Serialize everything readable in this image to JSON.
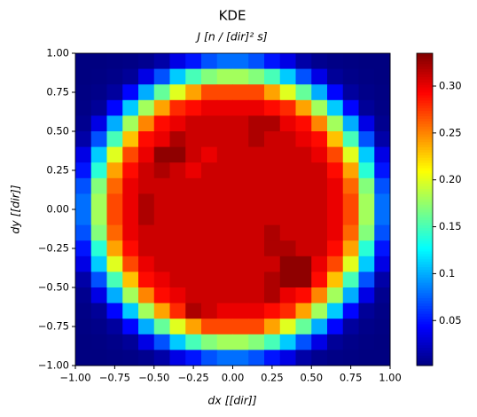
{
  "chart_data": {
    "type": "heatmap",
    "title": "KDE",
    "subtitle": "J [n / [dir]² s]",
    "xlabel": "dx [[dir]]",
    "ylabel": "dy [[dir]]",
    "xlim": [
      -1,
      1
    ],
    "ylim": [
      -1,
      1
    ],
    "xticks": [
      {
        "value": -1,
        "label": "−1.00"
      },
      {
        "value": -0.75,
        "label": "−0.75"
      },
      {
        "value": -0.5,
        "label": "−0.50"
      },
      {
        "value": -0.25,
        "label": "−0.25"
      },
      {
        "value": 0,
        "label": "0.00"
      },
      {
        "value": 0.25,
        "label": "0.25"
      },
      {
        "value": 0.5,
        "label": "0.50"
      },
      {
        "value": 0.75,
        "label": "0.75"
      },
      {
        "value": 1,
        "label": "1.00"
      }
    ],
    "yticks": [
      {
        "value": -1,
        "label": "−1.00"
      },
      {
        "value": -0.75,
        "label": "−0.75"
      },
      {
        "value": -0.5,
        "label": "−0.50"
      },
      {
        "value": -0.25,
        "label": "−0.25"
      },
      {
        "value": 0,
        "label": "0.00"
      },
      {
        "value": 0.25,
        "label": "0.25"
      },
      {
        "value": 0.5,
        "label": "0.50"
      },
      {
        "value": 0.75,
        "label": "0.75"
      },
      {
        "value": 1,
        "label": "1.00"
      }
    ],
    "colormap": "jet",
    "origin": "upper",
    "zlim": [
      0.002,
      0.335
    ],
    "zticks": [
      0.05,
      0.1,
      0.15,
      {
        "value": 0.2,
        "label": "0.20"
      },
      0.25,
      {
        "value": 0.3,
        "label": "0.30"
      }
    ],
    "z": [
      [
        0.002,
        0.002,
        0.003,
        0.004,
        0.007,
        0.015,
        0.035,
        0.05,
        0.07,
        0.08,
        0.08,
        0.07,
        0.05,
        0.035,
        0.015,
        0.007,
        0.004,
        0.003,
        0.002,
        0.002
      ],
      [
        0.002,
        0.003,
        0.005,
        0.01,
        0.035,
        0.07,
        0.11,
        0.15,
        0.17,
        0.18,
        0.18,
        0.17,
        0.15,
        0.11,
        0.07,
        0.035,
        0.01,
        0.005,
        0.003,
        0.002
      ],
      [
        0.003,
        0.005,
        0.012,
        0.045,
        0.1,
        0.16,
        0.2,
        0.24,
        0.27,
        0.27,
        0.27,
        0.27,
        0.24,
        0.2,
        0.16,
        0.1,
        0.045,
        0.012,
        0.005,
        0.003
      ],
      [
        0.004,
        0.01,
        0.045,
        0.11,
        0.18,
        0.24,
        0.28,
        0.29,
        0.3,
        0.3,
        0.3,
        0.3,
        0.29,
        0.28,
        0.24,
        0.18,
        0.11,
        0.045,
        0.01,
        0.004
      ],
      [
        0.007,
        0.035,
        0.1,
        0.18,
        0.25,
        0.29,
        0.3,
        0.31,
        0.31,
        0.31,
        0.31,
        0.32,
        0.32,
        0.3,
        0.29,
        0.25,
        0.18,
        0.1,
        0.035,
        0.007
      ],
      [
        0.015,
        0.07,
        0.15,
        0.23,
        0.29,
        0.3,
        0.32,
        0.31,
        0.31,
        0.31,
        0.31,
        0.32,
        0.31,
        0.31,
        0.3,
        0.29,
        0.23,
        0.15,
        0.07,
        0.015
      ],
      [
        0.035,
        0.11,
        0.2,
        0.27,
        0.3,
        0.33,
        0.33,
        0.31,
        0.3,
        0.31,
        0.31,
        0.31,
        0.31,
        0.31,
        0.31,
        0.3,
        0.27,
        0.2,
        0.11,
        0.035
      ],
      [
        0.05,
        0.14,
        0.24,
        0.29,
        0.31,
        0.32,
        0.31,
        0.3,
        0.31,
        0.31,
        0.31,
        0.31,
        0.31,
        0.31,
        0.31,
        0.31,
        0.29,
        0.24,
        0.14,
        0.05
      ],
      [
        0.07,
        0.17,
        0.26,
        0.3,
        0.31,
        0.31,
        0.31,
        0.31,
        0.31,
        0.31,
        0.31,
        0.31,
        0.31,
        0.31,
        0.31,
        0.31,
        0.3,
        0.26,
        0.17,
        0.07
      ],
      [
        0.08,
        0.18,
        0.27,
        0.3,
        0.32,
        0.31,
        0.31,
        0.31,
        0.31,
        0.31,
        0.31,
        0.31,
        0.31,
        0.31,
        0.31,
        0.31,
        0.3,
        0.27,
        0.18,
        0.08
      ],
      [
        0.08,
        0.18,
        0.27,
        0.3,
        0.32,
        0.31,
        0.31,
        0.31,
        0.31,
        0.31,
        0.31,
        0.31,
        0.31,
        0.31,
        0.31,
        0.31,
        0.3,
        0.27,
        0.18,
        0.08
      ],
      [
        0.07,
        0.17,
        0.26,
        0.3,
        0.31,
        0.31,
        0.31,
        0.31,
        0.31,
        0.31,
        0.31,
        0.31,
        0.32,
        0.31,
        0.31,
        0.31,
        0.3,
        0.26,
        0.17,
        0.07
      ],
      [
        0.05,
        0.14,
        0.24,
        0.29,
        0.31,
        0.31,
        0.31,
        0.31,
        0.31,
        0.31,
        0.31,
        0.31,
        0.32,
        0.32,
        0.31,
        0.31,
        0.29,
        0.24,
        0.14,
        0.05
      ],
      [
        0.035,
        0.11,
        0.2,
        0.27,
        0.3,
        0.31,
        0.31,
        0.31,
        0.31,
        0.31,
        0.31,
        0.31,
        0.31,
        0.33,
        0.33,
        0.3,
        0.27,
        0.2,
        0.11,
        0.035
      ],
      [
        0.015,
        0.07,
        0.15,
        0.23,
        0.29,
        0.3,
        0.31,
        0.31,
        0.31,
        0.31,
        0.31,
        0.31,
        0.32,
        0.33,
        0.33,
        0.29,
        0.23,
        0.15,
        0.07,
        0.015
      ],
      [
        0.007,
        0.035,
        0.1,
        0.18,
        0.25,
        0.29,
        0.3,
        0.31,
        0.31,
        0.31,
        0.31,
        0.31,
        0.32,
        0.3,
        0.29,
        0.25,
        0.18,
        0.1,
        0.035,
        0.007
      ],
      [
        0.004,
        0.01,
        0.045,
        0.11,
        0.18,
        0.24,
        0.28,
        0.32,
        0.31,
        0.3,
        0.3,
        0.3,
        0.29,
        0.28,
        0.24,
        0.18,
        0.11,
        0.045,
        0.01,
        0.004
      ],
      [
        0.003,
        0.005,
        0.012,
        0.045,
        0.1,
        0.16,
        0.2,
        0.24,
        0.27,
        0.27,
        0.27,
        0.27,
        0.24,
        0.2,
        0.16,
        0.1,
        0.045,
        0.012,
        0.005,
        0.003
      ],
      [
        0.002,
        0.003,
        0.005,
        0.01,
        0.035,
        0.07,
        0.11,
        0.15,
        0.17,
        0.18,
        0.18,
        0.17,
        0.15,
        0.11,
        0.07,
        0.035,
        0.01,
        0.005,
        0.003,
        0.002
      ],
      [
        0.002,
        0.002,
        0.003,
        0.004,
        0.007,
        0.015,
        0.035,
        0.05,
        0.07,
        0.08,
        0.08,
        0.07,
        0.05,
        0.035,
        0.015,
        0.007,
        0.004,
        0.003,
        0.002,
        0.002
      ]
    ]
  }
}
